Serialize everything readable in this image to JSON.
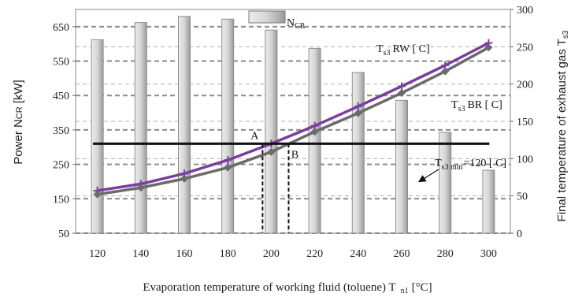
{
  "chart_data": {
    "type": "bar+line",
    "x": [
      120,
      140,
      160,
      180,
      200,
      220,
      240,
      260,
      280,
      300
    ],
    "xlabel": "Evaporation temperature of working fluid (toluene) T",
    "xlabel_sub": "n1",
    "xlabel_unit": "[°C]",
    "y_left": {
      "label_prefix": "Power N",
      "label_sub": "CR",
      "label_unit": "[kW]",
      "range": [
        50,
        700
      ],
      "ticks": [
        50,
        150,
        250,
        350,
        450,
        550,
        650
      ]
    },
    "y_right": {
      "label": "Final temperature of exhaust gas T",
      "label_sub": "s3",
      "range": [
        0,
        300
      ],
      "ticks": [
        0,
        50,
        100,
        150,
        200,
        250,
        300
      ]
    },
    "bars": {
      "name": "N",
      "name_sub": "CR",
      "axis": "left",
      "color": "#d4d4d4",
      "values": [
        612,
        662,
        680,
        672,
        640,
        587,
        517,
        436,
        343,
        233
      ]
    },
    "series": [
      {
        "name": "RW",
        "label_main": "T",
        "label_sub": "s3",
        "label_rest": "RW [  C]",
        "axis": "right",
        "color": "#7a3ea0",
        "marker": "plus",
        "values": [
          57,
          66,
          80,
          98,
          120,
          144,
          170,
          197,
          225,
          255
        ]
      },
      {
        "name": "BR",
        "label_main": "T",
        "label_sub": "s3",
        "label_rest": "BR [  C]",
        "axis": "right",
        "color": "#6a6a6a",
        "marker": "diamond",
        "values": [
          52,
          61,
          73,
          88,
          109,
          136,
          161,
          188,
          217,
          249
        ]
      }
    ],
    "hline": {
      "axis": "right",
      "value": 120,
      "x_start": 118,
      "x_end": 300,
      "label_main": "T",
      "label_sub": "s3 min",
      "label_rest": "=120 [  C]",
      "color": "#111111"
    },
    "points": [
      {
        "label": "A",
        "x": 196,
        "y_right": 120
      },
      {
        "label": "B",
        "x": 208,
        "y_right": 120
      }
    ],
    "grid": "dashed-horizontal"
  }
}
